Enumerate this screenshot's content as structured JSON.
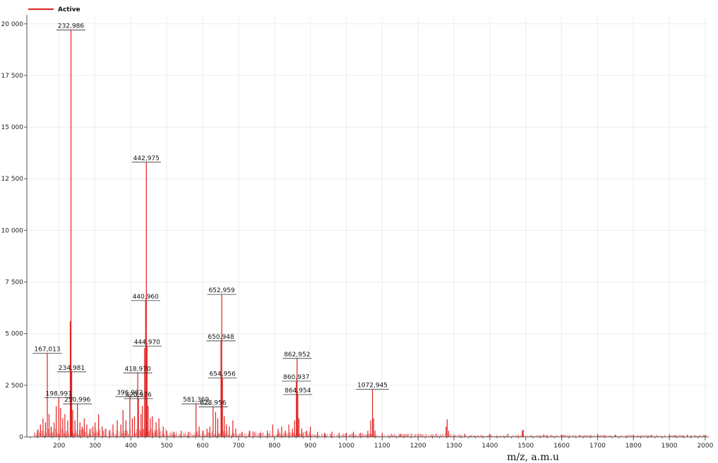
{
  "chart_data": {
    "type": "line",
    "title": "",
    "legend": {
      "entries": [
        "Active"
      ],
      "placement": "top-left"
    },
    "xlabel": "m/z,  a.m.u",
    "ylabel": "",
    "xlim": [
      110,
      2010
    ],
    "ylim": [
      0,
      20300
    ],
    "xticks": [
      200,
      300,
      400,
      500,
      600,
      700,
      800,
      900,
      1000,
      1100,
      1200,
      1300,
      1400,
      1500,
      1600,
      1700,
      1800,
      1900,
      2000
    ],
    "yticks": [
      0,
      2500,
      5000,
      7500,
      10000,
      12500,
      15000,
      17500,
      20000
    ],
    "ytick_labels": [
      "0",
      "2 500",
      "5 000",
      "7 500",
      "10 000",
      "12 500",
      "15 000",
      "17 500",
      "20 000"
    ],
    "grid": true,
    "series": [
      {
        "name": "Active",
        "color": "#e02020",
        "peaks": [
          {
            "x": 140,
            "y": 350
          },
          {
            "x": 148,
            "y": 600
          },
          {
            "x": 155,
            "y": 900
          },
          {
            "x": 162,
            "y": 700
          },
          {
            "x": 167.013,
            "y": 4050,
            "label": "167,013"
          },
          {
            "x": 172,
            "y": 1100
          },
          {
            "x": 178,
            "y": 500
          },
          {
            "x": 186,
            "y": 700
          },
          {
            "x": 192,
            "y": 1500
          },
          {
            "x": 198.991,
            "y": 1900,
            "label": "198,991"
          },
          {
            "x": 204,
            "y": 1400
          },
          {
            "x": 210,
            "y": 900
          },
          {
            "x": 216,
            "y": 1100
          },
          {
            "x": 224,
            "y": 800
          },
          {
            "x": 231,
            "y": 5600
          },
          {
            "x": 232.986,
            "y": 19700,
            "label": "232,986"
          },
          {
            "x": 234.981,
            "y": 3150,
            "label": "234,981"
          },
          {
            "x": 238,
            "y": 1300
          },
          {
            "x": 244,
            "y": 800
          },
          {
            "x": 250.996,
            "y": 1600,
            "label": "250,996"
          },
          {
            "x": 258,
            "y": 700
          },
          {
            "x": 264,
            "y": 500
          },
          {
            "x": 270,
            "y": 900
          },
          {
            "x": 277,
            "y": 600
          },
          {
            "x": 286,
            "y": 400
          },
          {
            "x": 294,
            "y": 500
          },
          {
            "x": 300,
            "y": 700
          },
          {
            "x": 310,
            "y": 1100
          },
          {
            "x": 320,
            "y": 500
          },
          {
            "x": 330,
            "y": 400
          },
          {
            "x": 340,
            "y": 300
          },
          {
            "x": 350,
            "y": 600
          },
          {
            "x": 362,
            "y": 800
          },
          {
            "x": 372,
            "y": 600
          },
          {
            "x": 378,
            "y": 1300
          },
          {
            "x": 386,
            "y": 800
          },
          {
            "x": 396.982,
            "y": 1950,
            "label": "396,982"
          },
          {
            "x": 404,
            "y": 900
          },
          {
            "x": 410,
            "y": 1000
          },
          {
            "x": 418.97,
            "y": 3100,
            "label": "418,970"
          },
          {
            "x": 420.976,
            "y": 1850,
            "label": "420,976"
          },
          {
            "x": 428,
            "y": 1100
          },
          {
            "x": 432,
            "y": 1500
          },
          {
            "x": 438,
            "y": 4300
          },
          {
            "x": 440.96,
            "y": 6600,
            "label": "440,960"
          },
          {
            "x": 442.975,
            "y": 13300,
            "label": "442,975"
          },
          {
            "x": 444.97,
            "y": 4400,
            "label": "444,970"
          },
          {
            "x": 448,
            "y": 1500
          },
          {
            "x": 454,
            "y": 900
          },
          {
            "x": 460,
            "y": 1000
          },
          {
            "x": 470,
            "y": 700
          },
          {
            "x": 478,
            "y": 900
          },
          {
            "x": 490,
            "y": 500
          },
          {
            "x": 500,
            "y": 300
          },
          {
            "x": 520,
            "y": 250
          },
          {
            "x": 540,
            "y": 300
          },
          {
            "x": 560,
            "y": 250
          },
          {
            "x": 581.369,
            "y": 1600,
            "label": "581,369"
          },
          {
            "x": 590,
            "y": 500
          },
          {
            "x": 600,
            "y": 300
          },
          {
            "x": 612,
            "y": 400
          },
          {
            "x": 620,
            "y": 500
          },
          {
            "x": 628.956,
            "y": 1450,
            "label": "628,956"
          },
          {
            "x": 636,
            "y": 1200
          },
          {
            "x": 642,
            "y": 900
          },
          {
            "x": 650.948,
            "y": 4650,
            "label": "650,948"
          },
          {
            "x": 652.959,
            "y": 6900,
            "label": "652,959"
          },
          {
            "x": 654.956,
            "y": 2850,
            "label": "654,956"
          },
          {
            "x": 660,
            "y": 1000
          },
          {
            "x": 666,
            "y": 600
          },
          {
            "x": 674,
            "y": 500
          },
          {
            "x": 684,
            "y": 800
          },
          {
            "x": 692,
            "y": 400
          },
          {
            "x": 710,
            "y": 250
          },
          {
            "x": 730,
            "y": 300
          },
          {
            "x": 760,
            "y": 200
          },
          {
            "x": 780,
            "y": 300
          },
          {
            "x": 795,
            "y": 600
          },
          {
            "x": 810,
            "y": 400
          },
          {
            "x": 820,
            "y": 500
          },
          {
            "x": 830,
            "y": 300
          },
          {
            "x": 840,
            "y": 600
          },
          {
            "x": 850,
            "y": 400
          },
          {
            "x": 856,
            "y": 800
          },
          {
            "x": 860.937,
            "y": 2700,
            "label": "860,937"
          },
          {
            "x": 862.952,
            "y": 3800,
            "label": "862,952"
          },
          {
            "x": 864.954,
            "y": 2050,
            "label": "864,954"
          },
          {
            "x": 868,
            "y": 900
          },
          {
            "x": 876,
            "y": 400
          },
          {
            "x": 890,
            "y": 300
          },
          {
            "x": 900,
            "y": 500
          },
          {
            "x": 920,
            "y": 250
          },
          {
            "x": 940,
            "y": 200
          },
          {
            "x": 960,
            "y": 250
          },
          {
            "x": 980,
            "y": 200
          },
          {
            "x": 1000,
            "y": 200
          },
          {
            "x": 1020,
            "y": 250
          },
          {
            "x": 1040,
            "y": 200
          },
          {
            "x": 1060,
            "y": 300
          },
          {
            "x": 1068,
            "y": 800
          },
          {
            "x": 1072.945,
            "y": 2300,
            "label": "1072,945"
          },
          {
            "x": 1076,
            "y": 900
          },
          {
            "x": 1080,
            "y": 300
          },
          {
            "x": 1100,
            "y": 200
          },
          {
            "x": 1150,
            "y": 150
          },
          {
            "x": 1200,
            "y": 150
          },
          {
            "x": 1250,
            "y": 150
          },
          {
            "x": 1278,
            "y": 500
          },
          {
            "x": 1281,
            "y": 850
          },
          {
            "x": 1285,
            "y": 300
          },
          {
            "x": 1330,
            "y": 150
          },
          {
            "x": 1400,
            "y": 150
          },
          {
            "x": 1450,
            "y": 150
          },
          {
            "x": 1490,
            "y": 300
          },
          {
            "x": 1493,
            "y": 350
          },
          {
            "x": 1550,
            "y": 120
          },
          {
            "x": 1600,
            "y": 120
          },
          {
            "x": 1650,
            "y": 100
          },
          {
            "x": 1700,
            "y": 150
          },
          {
            "x": 1750,
            "y": 100
          },
          {
            "x": 1800,
            "y": 100
          },
          {
            "x": 1850,
            "y": 100
          },
          {
            "x": 1900,
            "y": 120
          },
          {
            "x": 1950,
            "y": 100
          },
          {
            "x": 2000,
            "y": 100
          }
        ]
      }
    ]
  }
}
